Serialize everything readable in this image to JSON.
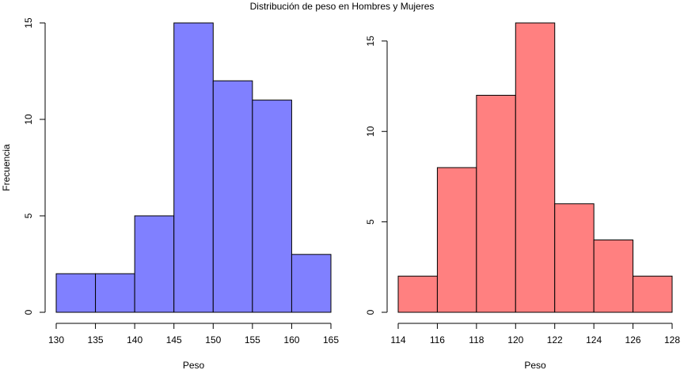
{
  "title": "Distribución de peso en Hombres y Mujeres",
  "chart_data": [
    {
      "type": "bar",
      "subtype": "histogram",
      "title": "",
      "xlabel": "Peso",
      "ylabel": "Frecuencia",
      "bin_edges": [
        130,
        135,
        140,
        145,
        150,
        155,
        160,
        165
      ],
      "values": [
        2,
        2,
        5,
        15,
        12,
        11,
        3
      ],
      "xlim": [
        130,
        165
      ],
      "ylim": [
        0,
        15
      ],
      "xticks": [
        130,
        135,
        140,
        145,
        150,
        155,
        160,
        165
      ],
      "yticks": [
        0,
        5,
        10,
        15
      ],
      "color": "#8080ff",
      "grid": false
    },
    {
      "type": "bar",
      "subtype": "histogram",
      "title": "",
      "xlabel": "Peso",
      "ylabel": "",
      "bin_edges": [
        114,
        116,
        118,
        120,
        122,
        124,
        126,
        128
      ],
      "values": [
        2,
        8,
        12,
        16,
        6,
        4,
        2
      ],
      "xlim": [
        114,
        128
      ],
      "ylim": [
        0,
        16
      ],
      "xticks": [
        114,
        116,
        118,
        120,
        122,
        124,
        126,
        128
      ],
      "yticks": [
        0,
        5,
        10,
        15
      ],
      "color": "#ff8080",
      "grid": false
    }
  ]
}
